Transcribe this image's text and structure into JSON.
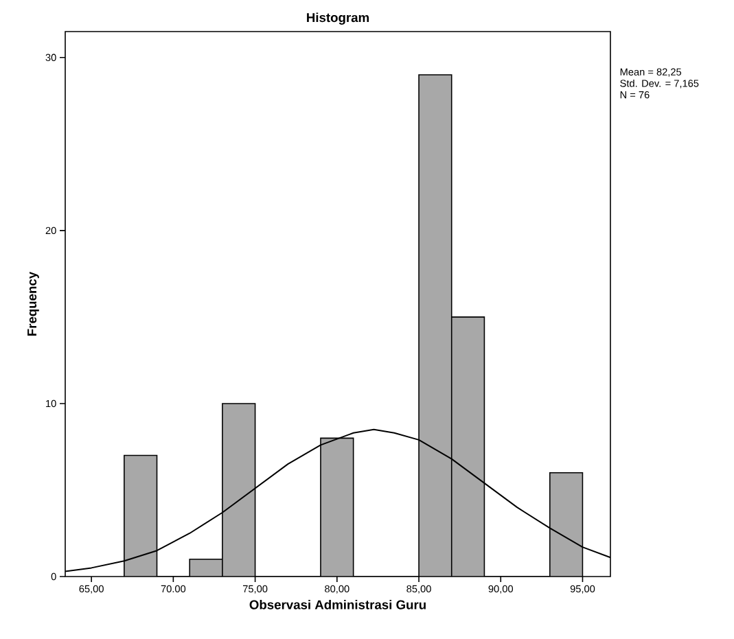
{
  "chart_data": {
    "type": "histogram",
    "title": "Histogram",
    "xlabel": "Observasi Administrasi Guru",
    "ylabel": "Frequency",
    "bins": [
      67,
      69,
      71,
      73,
      75,
      77,
      79,
      81,
      83,
      85,
      87,
      89,
      91,
      93,
      95
    ],
    "values": [
      7,
      0,
      1,
      10,
      0,
      0,
      8,
      0,
      0,
      29,
      15,
      0,
      0,
      6
    ],
    "color": "#a8a8a8",
    "series": [
      {
        "type": "line",
        "color": "#000000",
        "x": [
          63.4,
          65,
          67,
          69,
          71,
          73,
          75,
          77,
          79,
          81,
          82.25,
          83.5,
          85,
          87,
          89,
          91,
          93,
          95,
          96.7
        ],
        "values": [
          0.3,
          0.5,
          0.9,
          1.5,
          2.5,
          3.7,
          5.1,
          6.5,
          7.6,
          8.3,
          8.5,
          8.3,
          7.9,
          6.8,
          5.4,
          4.0,
          2.8,
          1.7,
          1.1
        ]
      }
    ],
    "xlim": [
      63.4,
      96.7
    ],
    "ylim": [
      0,
      31.5
    ],
    "xticks": [
      {
        "value": 65,
        "label": "65,00"
      },
      {
        "value": 70,
        "label": "70.00"
      },
      {
        "value": 75,
        "label": "75,00"
      },
      {
        "value": 80,
        "label": "80,00"
      },
      {
        "value": 85,
        "label": "85,00"
      },
      {
        "value": 90,
        "label": "90,00"
      },
      {
        "value": 95,
        "label": "95,00"
      }
    ],
    "yticks": [
      0,
      10,
      20,
      30
    ],
    "annotations": [
      "Mean = 82,25",
      "Std. Dev. = 7,165",
      "N = 76"
    ]
  }
}
